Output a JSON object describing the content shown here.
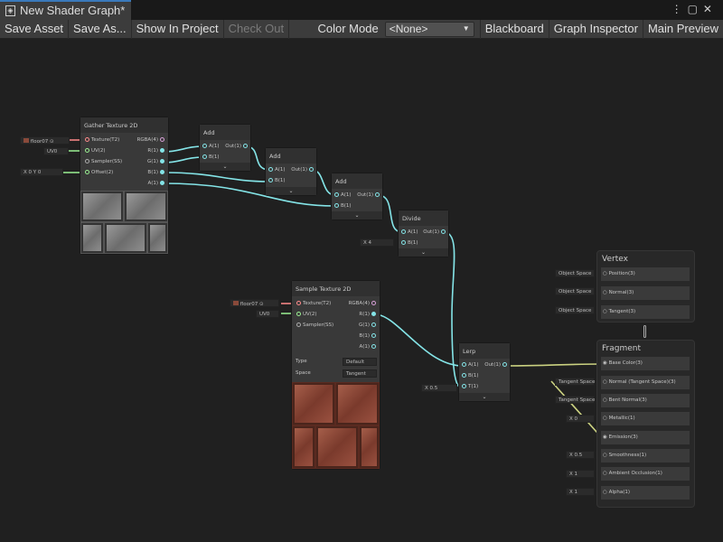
{
  "tab": {
    "title": "New Shader Graph*",
    "icon": "shader-graph-icon"
  },
  "toolbar": {
    "save_asset": "Save Asset",
    "save_as": "Save As...",
    "show_in_project": "Show In Project",
    "check_out": "Check Out",
    "color_mode_label": "Color Mode",
    "color_mode_value": "<None>",
    "blackboard": "Blackboard",
    "graph_inspector": "Graph Inspector",
    "main_preview": "Main Preview"
  },
  "gather": {
    "title": "Gather Texture 2D",
    "inputs": [
      "Texture(T2)",
      "UV(2)",
      "Sampler(SS)",
      "Offset(2)"
    ],
    "outputs": [
      "RGBA(4)",
      "R(1)",
      "G(1)",
      "B(1)",
      "A(1)"
    ],
    "texture_field": "floor07",
    "uv_field": "UV0",
    "offset_x_label": "X",
    "offset_x": "0",
    "offset_y_label": "Y",
    "offset_y": "0"
  },
  "add_nodes": [
    {
      "title": "Add",
      "inputs": [
        "A(1)",
        "B(1)"
      ],
      "output": "Out(1)"
    },
    {
      "title": "Add",
      "inputs": [
        "A(1)",
        "B(1)"
      ],
      "output": "Out(1)"
    },
    {
      "title": "Add",
      "inputs": [
        "A(1)",
        "B(1)"
      ],
      "output": "Out(1)"
    }
  ],
  "divide": {
    "title": "Divide",
    "inputs": [
      "A(1)",
      "B(1)"
    ],
    "output": "Out(1)",
    "b_label": "X",
    "b_value": "4"
  },
  "sample": {
    "title": "Sample Texture 2D",
    "inputs": [
      "Texture(T2)",
      "UV(2)",
      "Sampler(SS)"
    ],
    "outputs": [
      "RGBA(4)",
      "R(1)",
      "G(1)",
      "B(1)",
      "A(1)"
    ],
    "texture_field": "floor07",
    "uv_field": "UV0",
    "type_label": "Type",
    "type_value": "Default",
    "space_label": "Space",
    "space_value": "Tangent"
  },
  "lerp": {
    "title": "Lerp",
    "inputs": [
      "A(1)",
      "B(1)",
      "T(1)"
    ],
    "output": "Out(1)",
    "t_label": "X",
    "t_value": "0.5"
  },
  "vertex": {
    "title": "Vertex",
    "slots": [
      {
        "label": "Position(3)",
        "field": "Object Space"
      },
      {
        "label": "Normal(3)",
        "field": "Object Space"
      },
      {
        "label": "Tangent(3)",
        "field": "Object Space"
      }
    ]
  },
  "fragment": {
    "title": "Fragment",
    "slots": [
      {
        "label": "Base Color(3)",
        "field": ""
      },
      {
        "label": "Normal (Tangent Space)(3)",
        "field": "Tangent Space"
      },
      {
        "label": "Bent Normal(3)",
        "field": "Tangent Space"
      },
      {
        "label": "Metallic(1)",
        "field": "0",
        "fx": "X"
      },
      {
        "label": "Emission(3)",
        "field": ""
      },
      {
        "label": "Smoothness(1)",
        "field": "0.5",
        "fx": "X"
      },
      {
        "label": "Ambient Occlusion(1)",
        "field": "1",
        "fx": "X"
      },
      {
        "label": "Alpha(1)",
        "field": "1",
        "fx": "X"
      }
    ]
  },
  "colors": {
    "float_wire": "#84e4e7",
    "vector3_wire": "#f6ff9a",
    "vector2_wire": "#9aef92",
    "texture_wire": "#ff8b8b",
    "tab_accent": "#3a79bb"
  }
}
